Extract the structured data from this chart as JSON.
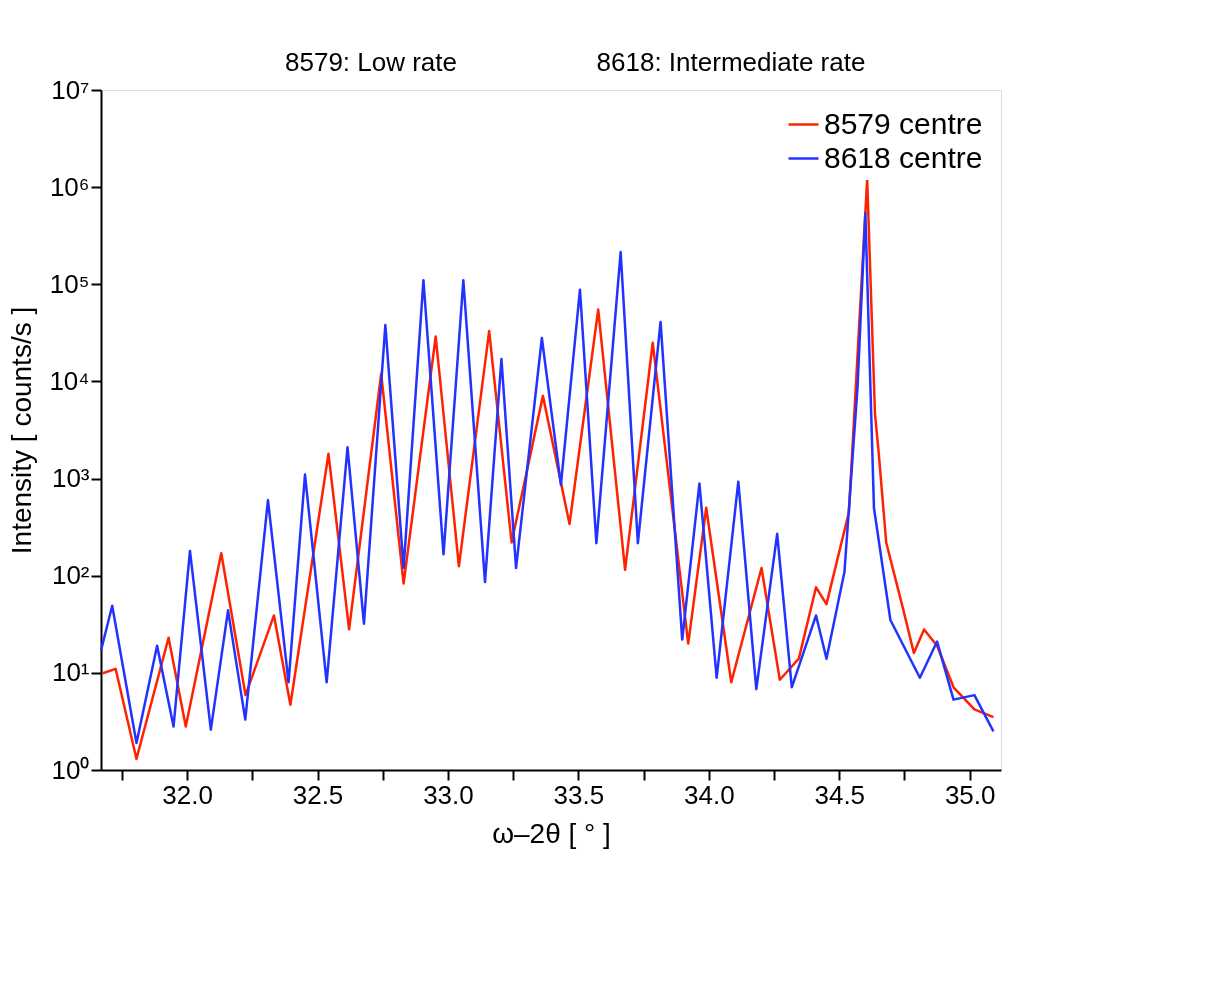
{
  "chart_data": {
    "type": "line",
    "annotations": [
      "8579: Low rate",
      "8618: Intermediate rate"
    ],
    "xlabel": "ω–2θ [ ° ]",
    "ylabel": "Intensity [ counts/s ]",
    "xlim": [
      31.67,
      35.12
    ],
    "xticks": [
      {
        "value": 31.75,
        "label": null
      },
      {
        "value": 32,
        "label": "32.0"
      },
      {
        "value": 32.25,
        "label": null
      },
      32.5,
      {
        "value": 32.75,
        "label": null
      },
      {
        "value": 33,
        "label": "33.0"
      },
      {
        "value": 33.25,
        "label": null
      },
      33.5,
      {
        "value": 33.75,
        "label": null
      },
      {
        "value": 34,
        "label": "34.0"
      },
      {
        "value": 34.25,
        "label": null
      },
      34.5,
      {
        "value": 34.75,
        "label": null
      },
      {
        "value": 35,
        "label": "35.0"
      }
    ],
    "ylim": [
      1,
      10000000
    ],
    "log": true,
    "yticks": [
      {
        "value": 1,
        "label": "10⁰"
      },
      {
        "value": 10,
        "label": "10¹"
      },
      {
        "value": 100,
        "label": "10²"
      },
      {
        "value": 1000,
        "label": "10³"
      },
      {
        "value": 10000,
        "label": "10⁴"
      },
      {
        "value": 100000,
        "label": "10⁵"
      },
      {
        "value": 1000000,
        "label": "10⁶"
      },
      {
        "value": 10000000,
        "label": "10⁷"
      }
    ],
    "grid": false,
    "legend": "top right",
    "marker": "none",
    "line_style": "solid",
    "series": [
      {
        "name": "8579 centre",
        "color": "#ff2200",
        "x": [
          31.677,
          31.726,
          31.806,
          31.929,
          31.995,
          32.131,
          32.224,
          32.333,
          32.396,
          32.542,
          32.621,
          32.744,
          32.83,
          32.953,
          33.042,
          33.158,
          33.244,
          33.364,
          33.466,
          33.576,
          33.679,
          33.785,
          33.921,
          33.99,
          34.086,
          34.202,
          34.272,
          34.345,
          34.411,
          34.451,
          34.537,
          34.607,
          34.637,
          34.65,
          34.68,
          34.746,
          34.786,
          34.825,
          34.875,
          34.938,
          35.018,
          35.091
        ],
        "values": [
          9.9,
          11,
          1.3,
          23,
          2.8,
          170,
          5.9,
          39,
          4.7,
          1800,
          28,
          12000,
          83,
          29000,
          125,
          33000,
          220,
          7100,
          340,
          55000,
          115,
          25000,
          20,
          500,
          8,
          120,
          8.5,
          14,
          76,
          51,
          450,
          1200000,
          4600,
          2000,
          220,
          44,
          16,
          28,
          19,
          7.1,
          4.2,
          3.5
        ]
      },
      {
        "name": "8618 centre",
        "color": "#2233ff",
        "x": [
          31.67,
          31.713,
          31.806,
          31.885,
          31.948,
          32.011,
          32.091,
          32.157,
          32.223,
          32.31,
          32.389,
          32.452,
          32.535,
          32.615,
          32.678,
          32.76,
          32.83,
          32.906,
          32.983,
          33.059,
          33.142,
          33.205,
          33.261,
          33.36,
          33.433,
          33.506,
          33.569,
          33.662,
          33.728,
          33.815,
          33.898,
          33.964,
          34.03,
          34.113,
          34.182,
          34.262,
          34.318,
          34.411,
          34.451,
          34.52,
          34.57,
          34.6,
          34.633,
          34.696,
          34.809,
          34.875,
          34.938,
          35.018,
          35.091
        ],
        "values": [
          17,
          49,
          1.9,
          19,
          2.8,
          180,
          2.6,
          44,
          3.3,
          600,
          8,
          1100,
          8,
          2100,
          32,
          38000,
          120,
          110000,
          166,
          110000,
          86,
          17000,
          120,
          28000,
          860,
          88000,
          216,
          215000,
          216,
          41000,
          22,
          890,
          8.9,
          930,
          6.8,
          270,
          7.1,
          39,
          14,
          110,
          8700,
          540000,
          500,
          35,
          8.9,
          21,
          5.3,
          5.9,
          2.5
        ]
      }
    ]
  }
}
